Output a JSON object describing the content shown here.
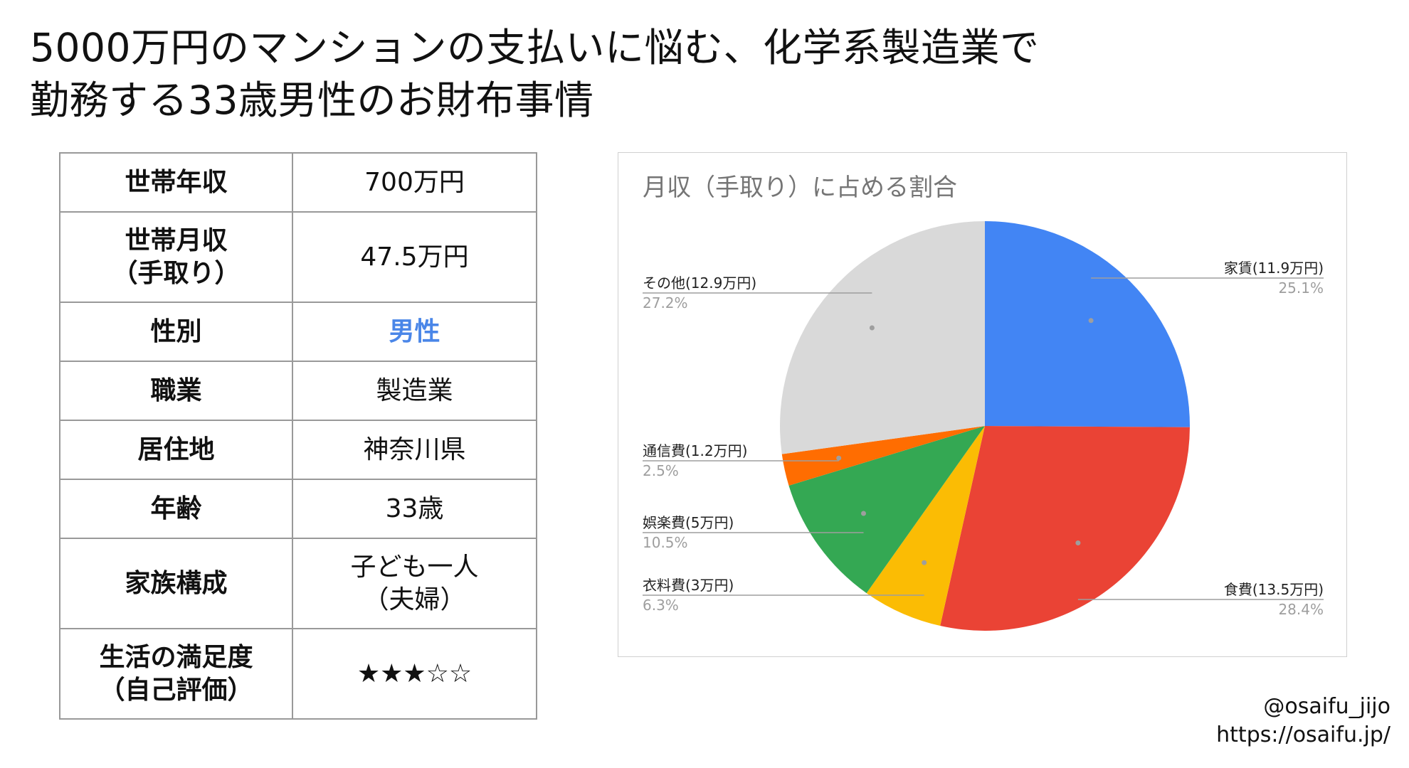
{
  "title": {
    "line1": "5000万円のマンションの支払いに悩む、化学系製造業で",
    "line2": "勤務する33歳男性のお財布事情"
  },
  "profile": [
    {
      "key": [
        "世帯年収"
      ],
      "value": [
        "700万円"
      ]
    },
    {
      "key": [
        "世帯月収",
        "（手取り）"
      ],
      "value": [
        "47.5万円"
      ]
    },
    {
      "key": [
        "性別"
      ],
      "value": [
        "男性"
      ],
      "accent": "#4a86e8"
    },
    {
      "key": [
        "職業"
      ],
      "value": [
        "製造業"
      ]
    },
    {
      "key": [
        "居住地"
      ],
      "value": [
        "神奈川県"
      ]
    },
    {
      "key": [
        "年齢"
      ],
      "value": [
        "33歳"
      ]
    },
    {
      "key": [
        "家族構成"
      ],
      "value": [
        "子ども一人",
        "（夫婦）"
      ]
    },
    {
      "key": [
        "生活の満足度",
        "（自己評価）"
      ],
      "value": [
        "★★★☆☆"
      ]
    }
  ],
  "chart_data": {
    "type": "pie",
    "title": "月収（手取り）に占める割合",
    "slices": [
      {
        "label": "家賃(11.9万円)",
        "amount_man_yen": 11.9,
        "percent": 25.1,
        "percent_label": "25.1%",
        "color": "#4285f4"
      },
      {
        "label": "食費(13.5万円)",
        "amount_man_yen": 13.5,
        "percent": 28.4,
        "percent_label": "28.4%",
        "color": "#ea4335"
      },
      {
        "label": "衣料費(3万円)",
        "amount_man_yen": 3,
        "percent": 6.3,
        "percent_label": "6.3%",
        "color": "#fbbc04"
      },
      {
        "label": "娯楽費(5万円)",
        "amount_man_yen": 5,
        "percent": 10.5,
        "percent_label": "10.5%",
        "color": "#34a853"
      },
      {
        "label": "通信費(1.2万円)",
        "amount_man_yen": 1.2,
        "percent": 2.5,
        "percent_label": "2.5%",
        "color": "#ff6d01"
      },
      {
        "label": "その他(12.9万円)",
        "amount_man_yen": 12.9,
        "percent": 27.2,
        "percent_label": "27.2%",
        "color": "#d9d9d9"
      }
    ]
  },
  "credit": {
    "handle": "@osaifu_jijo",
    "url": "https://osaifu.jp/"
  }
}
